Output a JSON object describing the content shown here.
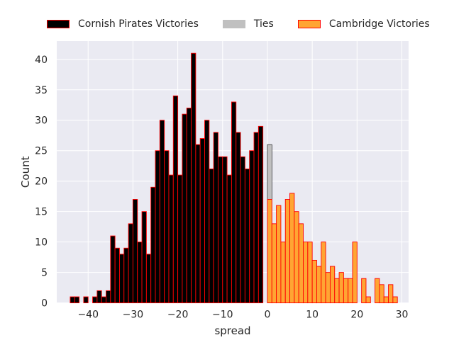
{
  "chart_data": {
    "type": "bar",
    "title": "",
    "xlabel": "spread",
    "ylabel": "Count",
    "xlim": [
      -47,
      31.5
    ],
    "ylim": [
      0,
      43
    ],
    "grid": true,
    "legend_placement": "top (above plot)",
    "x_ticks": [
      -40,
      -30,
      -20,
      -10,
      0,
      10,
      20,
      30
    ],
    "x_tick_labels": [
      "−40",
      "−30",
      "−20",
      "−10",
      "0",
      "10",
      "20",
      "30"
    ],
    "y_ticks": [
      0,
      5,
      10,
      15,
      20,
      25,
      30,
      35,
      40
    ],
    "y_tick_labels": [
      "0",
      "5",
      "10",
      "15",
      "20",
      "25",
      "30",
      "35",
      "40"
    ],
    "bin_width": 1,
    "series": [
      {
        "name": "Cornish Pirates Victories",
        "color": "#000000",
        "edgecolor": "#ff0000",
        "bin_starts": [
          -44,
          -43,
          -42,
          -41,
          -40,
          -39,
          -38,
          -37,
          -36,
          -35,
          -34,
          -33,
          -32,
          -31,
          -30,
          -29,
          -28,
          -27,
          -26,
          -25,
          -24,
          -23,
          -22,
          -21,
          -20,
          -19,
          -18,
          -17,
          -16,
          -15,
          -14,
          -13,
          -12,
          -11,
          -10,
          -9,
          -8,
          -7,
          -6,
          -5,
          -4,
          -3,
          -2,
          -1
        ],
        "values": [
          1,
          1,
          0,
          1,
          0,
          1,
          2,
          1,
          2,
          11,
          9,
          8,
          9,
          13,
          17,
          10,
          15,
          8,
          19,
          25,
          30,
          25,
          21,
          34,
          21,
          31,
          32,
          41,
          26,
          27,
          30,
          22,
          28,
          24,
          24,
          21,
          33,
          28,
          24,
          22,
          25,
          28,
          29,
          0
        ]
      },
      {
        "name": "Ties",
        "color": "#c0c0c0",
        "edgecolor": "#000000",
        "bin_starts": [
          0
        ],
        "values": [
          26
        ]
      },
      {
        "name": "Cambridge Victories",
        "color": "#ffa533",
        "edgecolor": "#ff0000",
        "bin_starts": [
          0,
          1,
          2,
          3,
          4,
          5,
          6,
          7,
          8,
          9,
          10,
          11,
          12,
          13,
          14,
          15,
          16,
          17,
          18,
          19,
          20,
          21,
          22,
          23,
          24,
          25,
          26,
          27,
          28
        ],
        "values": [
          17,
          13,
          16,
          10,
          17,
          18,
          15,
          13,
          10,
          10,
          7,
          6,
          10,
          5,
          6,
          4,
          5,
          4,
          4,
          10,
          0,
          4,
          1,
          0,
          4,
          3,
          1,
          3,
          1
        ]
      }
    ]
  }
}
